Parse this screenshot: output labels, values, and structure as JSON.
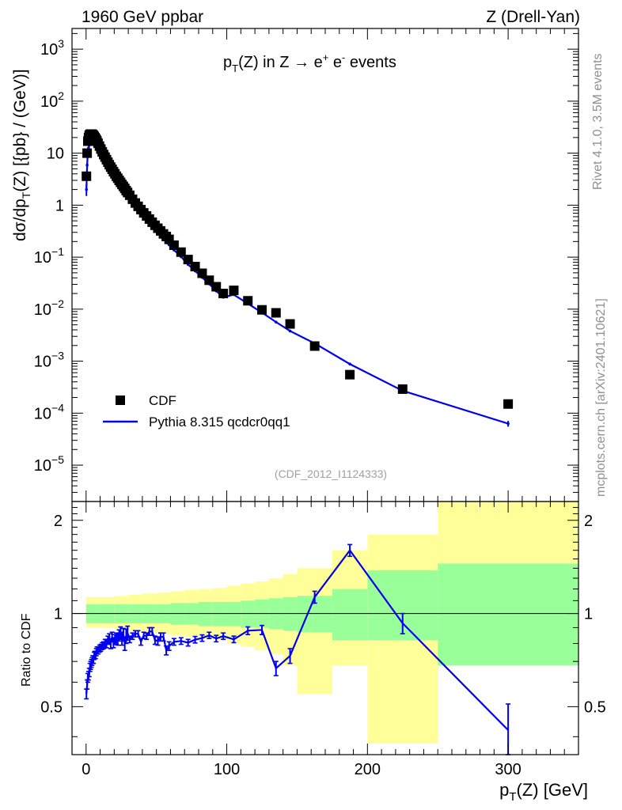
{
  "header": {
    "left": "1960 GeV ppbar",
    "right": "Z (Drell-Yan)"
  },
  "side_labels": {
    "rivet": "Rivet 4.1.0,  3.5M events",
    "mcplots": "mcplots.cern.ch [arXiv:2401.10621]"
  },
  "colors": {
    "data": "#000000",
    "mc": "#0000ee",
    "band_inner": "#99ff99",
    "band_outer": "#ffff99"
  },
  "chart_data": [
    {
      "type": "scatter",
      "title": "pT(Z) in Z → e+ e- events",
      "title_parts": {
        "main": "p",
        "sub": "T",
        "mid": "(Z) in Z → ",
        "e1": "e",
        "sup1": "+",
        "e2": " e",
        "sup2": "-",
        "tail": " events"
      },
      "ylabel": "dσ/dpT(Z) [{pb} / (GeV)]",
      "ylabel_parts": {
        "a": "dσ/dp",
        "sub": "T",
        "b": "(Z) [{pb} / (GeV)]"
      },
      "xlim": [
        -10,
        350
      ],
      "ylim": [
        2e-06,
        2500
      ],
      "yscale": "log",
      "yticks": [
        {
          "v": 1e-05,
          "base": "10",
          "exp": "−5"
        },
        {
          "v": 0.0001,
          "base": "10",
          "exp": "−4"
        },
        {
          "v": 0.001,
          "base": "10",
          "exp": "−3"
        },
        {
          "v": 0.01,
          "base": "10",
          "exp": "−2"
        },
        {
          "v": 0.1,
          "base": "10",
          "exp": "−1"
        },
        {
          "v": 1,
          "base": "1",
          "exp": ""
        },
        {
          "v": 10,
          "base": "10",
          "exp": ""
        },
        {
          "v": 100,
          "base": "10",
          "exp": "2"
        },
        {
          "v": 1000,
          "base": "10",
          "exp": "3"
        }
      ],
      "legend": [
        {
          "label": "CDF",
          "style": "square"
        },
        {
          "label": "Pythia 8.315 qcdcr0qq1",
          "style": "line"
        }
      ],
      "legend_position": "bottom-left",
      "watermark": "(CDF_2012_I1124333)",
      "series": [
        {
          "name": "CDF",
          "x": [
            0.25,
            0.75,
            1.25,
            1.75,
            2.25,
            2.75,
            3.25,
            3.75,
            4.25,
            4.75,
            5.25,
            5.75,
            6.25,
            6.75,
            7.25,
            7.75,
            8.5,
            9.5,
            10.5,
            11.5,
            12.5,
            13.5,
            14.5,
            15.5,
            16.5,
            17.5,
            18.5,
            19.5,
            20.5,
            21.5,
            22.5,
            23.5,
            24.5,
            25.5,
            26.5,
            27.5,
            28.5,
            29.5,
            31,
            33,
            35,
            37,
            39,
            41,
            43,
            45,
            47,
            49,
            51,
            53,
            55,
            57,
            59,
            62.5,
            67.5,
            72.5,
            77.5,
            82.5,
            87.5,
            92.5,
            97.5,
            105,
            115,
            125,
            135,
            145,
            162.5,
            187.5,
            225,
            300
          ],
          "values": [
            3.6,
            10,
            17,
            20,
            22,
            23,
            23.3,
            23.3,
            23.2,
            22.6,
            21.9,
            21,
            20,
            19,
            18,
            17,
            15.5,
            13.7,
            12,
            10.6,
            9.4,
            8.4,
            7.5,
            6.7,
            6,
            5.4,
            4.9,
            4.4,
            4,
            3.6,
            3.3,
            3,
            2.75,
            2.5,
            2.3,
            2.1,
            1.9,
            1.75,
            1.55,
            1.3,
            1.1,
            0.95,
            0.82,
            0.71,
            0.62,
            0.54,
            0.47,
            0.41,
            0.36,
            0.32,
            0.28,
            0.25,
            0.22,
            0.17,
            0.125,
            0.09,
            0.066,
            0.049,
            0.036,
            0.027,
            0.02,
            0.023,
            0.0145,
            0.0097,
            0.0085,
            0.0052,
            0.00195,
            0.00055,
            0.00029,
            0.00015
          ]
        },
        {
          "name": "Pythia 8.315 qcdcr0qq1",
          "x": [
            0.25,
            0.75,
            1.25,
            1.75,
            2.25,
            2.75,
            3.25,
            3.75,
            4.25,
            4.75,
            5.25,
            5.75,
            6.25,
            6.75,
            7.25,
            7.75,
            8.5,
            9.5,
            10.5,
            11.5,
            12.5,
            13.5,
            14.5,
            15.5,
            16.5,
            17.5,
            18.5,
            19.5,
            20.5,
            21.5,
            22.5,
            23.5,
            24.5,
            25.5,
            26.5,
            27.5,
            28.5,
            29.5,
            31,
            33,
            35,
            37,
            39,
            41,
            43,
            45,
            47,
            49,
            51,
            53,
            55,
            57,
            59,
            62.5,
            67.5,
            72.5,
            77.5,
            82.5,
            87.5,
            92.5,
            97.5,
            105,
            115,
            125,
            135,
            145,
            162.5,
            187.5,
            225,
            300
          ],
          "values": [
            2.0,
            5.9,
            10.5,
            12.6,
            14.2,
            15.4,
            15.8,
            16.1,
            16.2,
            16.0,
            15.6,
            15.3,
            14.7,
            14.0,
            13.5,
            12.9,
            11.8,
            10.5,
            9.3,
            8.3,
            7.4,
            6.7,
            6.0,
            5.5,
            5.0,
            4.3,
            4.1,
            3.55,
            3.3,
            3.0,
            2.72,
            2.55,
            2.38,
            2.08,
            1.97,
            1.68,
            1.61,
            1.51,
            1.28,
            1.1,
            0.946,
            0.817,
            0.664,
            0.602,
            0.523,
            0.472,
            0.411,
            0.336,
            0.294,
            0.269,
            0.235,
            0.19,
            0.173,
            0.137,
            0.102,
            0.0724,
            0.0543,
            0.0408,
            0.0306,
            0.0224,
            0.0169,
            0.019,
            0.0128,
            0.0086,
            0.00565,
            0.0038,
            0.0022,
            0.00088,
            0.00027,
            6.3e-05
          ],
          "errors": [
            0.5,
            0.6,
            0.7,
            0.7,
            0.7,
            0.7,
            0.7,
            0.7,
            0.7,
            0.6,
            0.6,
            0.6,
            0.6,
            0.5,
            0.5,
            0.5,
            0.3,
            0.3,
            0.3,
            0.25,
            0.2,
            0.2,
            0.2,
            0.15,
            0.15,
            0.12,
            0.12,
            0.1,
            0.1,
            0.1,
            0.08,
            0.08,
            0.08,
            0.06,
            0.06,
            0.05,
            0.05,
            0.05,
            0.03,
            0.03,
            0.025,
            0.02,
            0.015,
            0.015,
            0.012,
            0.01,
            0.01,
            0.008,
            0.007,
            0.006,
            0.005,
            0.004,
            0.004,
            0.003,
            0.002,
            0.0015,
            0.0011,
            0.0008,
            0.0006,
            0.0005,
            0.0004,
            0.0004,
            0.0003,
            0.0002,
            0.00015,
            0.0001,
            7e-05,
            4e-05,
            2e-05,
            8e-06
          ]
        }
      ]
    },
    {
      "type": "line",
      "ylabel": "Ratio to CDF",
      "xlabel": "pT(Z) [GeV]",
      "xlabel_parts": {
        "a": "p",
        "sub": "T",
        "b": "(Z) [GeV]"
      },
      "xlim": [
        -10,
        350
      ],
      "ylim": [
        0.35,
        2.3
      ],
      "yscale": "log",
      "yticks": [
        0.5,
        1,
        2
      ],
      "xticks": [
        0,
        100,
        200,
        300
      ],
      "reference_line": 1,
      "bands": {
        "edges": [
          0,
          10,
          20,
          30,
          40,
          50,
          60,
          70,
          80,
          90,
          100,
          110,
          120,
          130,
          140,
          150,
          175,
          200,
          250,
          350
        ],
        "inner_lo": [
          0.93,
          0.93,
          0.93,
          0.93,
          0.93,
          0.93,
          0.92,
          0.92,
          0.91,
          0.91,
          0.91,
          0.9,
          0.9,
          0.89,
          0.88,
          0.87,
          0.82,
          0.82,
          0.68,
          0.35
        ],
        "inner_hi": [
          1.07,
          1.07,
          1.07,
          1.07,
          1.07,
          1.07,
          1.08,
          1.08,
          1.09,
          1.09,
          1.09,
          1.1,
          1.11,
          1.12,
          1.13,
          1.14,
          1.2,
          1.38,
          1.45,
          1.83
        ],
        "outer_lo": [
          0.9,
          0.9,
          0.89,
          0.88,
          0.87,
          0.86,
          0.85,
          0.84,
          0.83,
          0.82,
          0.8,
          0.78,
          0.76,
          0.74,
          0.68,
          0.55,
          0.68,
          0.38,
          0.68,
          0.35
        ],
        "outer_hi": [
          1.13,
          1.13,
          1.14,
          1.15,
          1.16,
          1.17,
          1.18,
          1.19,
          1.2,
          1.21,
          1.23,
          1.25,
          1.27,
          1.3,
          1.34,
          1.4,
          1.6,
          1.8,
          2.3,
          2.3
        ]
      },
      "series": [
        {
          "name": "Pythia 8.315 qcdcr0qq1 / CDF",
          "x": [
            0.25,
            0.75,
            1.25,
            1.75,
            2.25,
            2.75,
            3.25,
            3.75,
            4.25,
            4.75,
            5.25,
            5.75,
            6.25,
            6.75,
            7.25,
            7.75,
            8.5,
            9.5,
            10.5,
            11.5,
            12.5,
            13.5,
            14.5,
            15.5,
            16.5,
            17.5,
            18.5,
            19.5,
            20.5,
            21.5,
            22.5,
            23.5,
            24.5,
            25.5,
            26.5,
            27.5,
            28.5,
            29.5,
            31,
            33,
            35,
            37,
            39,
            41,
            43,
            45,
            47,
            49,
            51,
            53,
            55,
            57,
            59,
            62.5,
            67.5,
            72.5,
            77.5,
            82.5,
            87.5,
            92.5,
            97.5,
            105,
            115,
            125,
            135,
            145,
            162.5,
            187.5,
            225,
            300
          ],
          "values": [
            0.55,
            0.59,
            0.62,
            0.63,
            0.645,
            0.67,
            0.68,
            0.69,
            0.7,
            0.71,
            0.71,
            0.73,
            0.735,
            0.735,
            0.75,
            0.76,
            0.76,
            0.77,
            0.775,
            0.785,
            0.79,
            0.8,
            0.8,
            0.82,
            0.83,
            0.8,
            0.84,
            0.805,
            0.825,
            0.83,
            0.825,
            0.85,
            0.865,
            0.83,
            0.855,
            0.8,
            0.845,
            0.865,
            0.825,
            0.845,
            0.86,
            0.86,
            0.81,
            0.85,
            0.845,
            0.875,
            0.875,
            0.82,
            0.815,
            0.84,
            0.84,
            0.76,
            0.785,
            0.81,
            0.815,
            0.805,
            0.823,
            0.833,
            0.85,
            0.83,
            0.845,
            0.825,
            0.88,
            0.885,
            0.665,
            0.73,
            1.13,
            1.6,
            0.93,
            0.42
          ],
          "errors": [
            0.02,
            0.02,
            0.02,
            0.02,
            0.02,
            0.02,
            0.02,
            0.02,
            0.02,
            0.02,
            0.02,
            0.02,
            0.02,
            0.02,
            0.02,
            0.02,
            0.02,
            0.02,
            0.02,
            0.02,
            0.02,
            0.025,
            0.025,
            0.025,
            0.03,
            0.03,
            0.03,
            0.03,
            0.03,
            0.035,
            0.035,
            0.035,
            0.04,
            0.04,
            0.04,
            0.04,
            0.045,
            0.045,
            0.02,
            0.02,
            0.02,
            0.02,
            0.02,
            0.02,
            0.02,
            0.025,
            0.025,
            0.025,
            0.025,
            0.025,
            0.025,
            0.025,
            0.025,
            0.02,
            0.02,
            0.02,
            0.02,
            0.02,
            0.02,
            0.02,
            0.02,
            0.02,
            0.025,
            0.03,
            0.035,
            0.04,
            0.05,
            0.07,
            0.07,
            0.09
          ]
        }
      ]
    }
  ]
}
